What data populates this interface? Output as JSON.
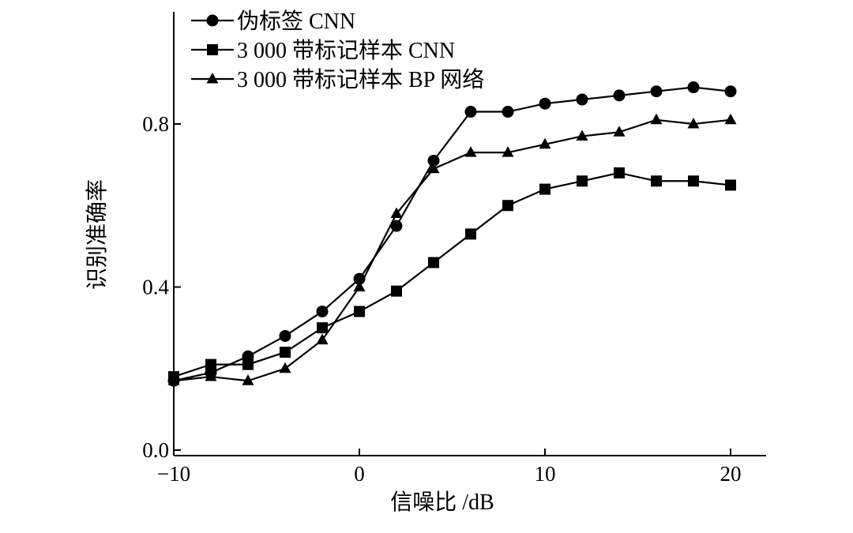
{
  "chart_data": {
    "type": "line",
    "xlabel": "信噪比 /dB",
    "ylabel": "识别准确率",
    "xlim": [
      -10,
      22
    ],
    "ylim": [
      0.0,
      1.08
    ],
    "x_ticks": [
      "−10",
      "0",
      "10",
      "20"
    ],
    "x_tick_values": [
      -10,
      0,
      10,
      20
    ],
    "y_ticks": [
      "0.0",
      "0.4",
      "0.8"
    ],
    "y_tick_values": [
      0.0,
      0.4,
      0.8
    ],
    "x": [
      -10,
      -8,
      -6,
      -4,
      -2,
      0,
      2,
      4,
      6,
      8,
      10,
      12,
      14,
      16,
      18,
      20
    ],
    "legend_position": "top-left",
    "series": [
      {
        "name": "伪标签 CNN",
        "marker": "circle",
        "values": [
          0.17,
          0.19,
          0.23,
          0.28,
          0.34,
          0.42,
          0.55,
          0.71,
          0.83,
          0.83,
          0.85,
          0.86,
          0.87,
          0.88,
          0.89,
          0.88
        ]
      },
      {
        "name": "3 000 带标记样本 CNN",
        "marker": "square",
        "values": [
          0.18,
          0.21,
          0.21,
          0.24,
          0.3,
          0.34,
          0.39,
          0.46,
          0.53,
          0.6,
          0.64,
          0.66,
          0.68,
          0.66,
          0.66,
          0.65
        ]
      },
      {
        "name": "3 000 带标记样本 BP 网络",
        "marker": "triangle",
        "values": [
          0.17,
          0.18,
          0.17,
          0.2,
          0.27,
          0.4,
          0.58,
          0.69,
          0.73,
          0.73,
          0.75,
          0.77,
          0.78,
          0.81,
          0.8,
          0.81
        ]
      }
    ]
  }
}
